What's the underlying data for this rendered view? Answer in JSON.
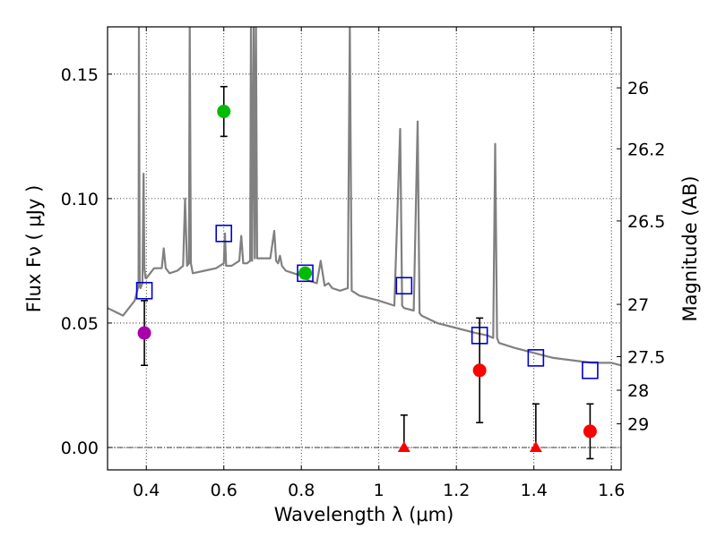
{
  "chart_data": {
    "type": "scatter",
    "xlabel": "Wavelength  λ (μm)",
    "ylabel_left": "Flux  Fν  ( μJy )",
    "ylabel_right": "Magnitude (AB)",
    "xlim": [
      0.3,
      1.625
    ],
    "ylim": [
      -0.009,
      0.169
    ],
    "x_ticks": [
      0.4,
      0.6,
      0.8,
      1.0,
      1.2,
      1.4,
      1.6
    ],
    "x_tick_labels": [
      "0.4",
      "0.6",
      "0.8",
      "1",
      "1.2",
      "1.4",
      "1.6"
    ],
    "y_ticks": [
      0.0,
      0.05,
      0.1,
      0.15
    ],
    "y_tick_labels": [
      "0.00",
      "0.05",
      "0.10",
      "0.15"
    ],
    "right_ticks": [
      {
        "label": "26",
        "flux": 0.1445
      },
      {
        "label": "26.2",
        "flux": 0.12
      },
      {
        "label": "26.5",
        "flux": 0.091
      },
      {
        "label": "27",
        "flux": 0.0575
      },
      {
        "label": "27.5",
        "flux": 0.0365
      },
      {
        "label": "28",
        "flux": 0.023
      },
      {
        "label": "29",
        "flux": 0.0095
      }
    ],
    "grid": true,
    "zero_line": 0.0,
    "colors": {
      "spectrum": "#808080",
      "model_box": "#0000cc",
      "purple": "#aa00aa",
      "green": "#00bb00",
      "red": "#ff0000",
      "errorbar": "#000000"
    },
    "series": [
      {
        "name": "model_spectrum",
        "type": "line",
        "x": [
          0.3,
          0.34,
          0.37,
          0.38,
          0.381,
          0.383,
          0.385,
          0.39,
          0.393,
          0.395,
          0.398,
          0.4,
          0.42,
          0.44,
          0.445,
          0.45,
          0.46,
          0.48,
          0.495,
          0.5,
          0.505,
          0.51,
          0.512,
          0.515,
          0.52,
          0.55,
          0.58,
          0.6,
          0.603,
          0.606,
          0.62,
          0.64,
          0.645,
          0.65,
          0.66,
          0.668,
          0.67,
          0.673,
          0.677,
          0.68,
          0.683,
          0.686,
          0.69,
          0.72,
          0.73,
          0.735,
          0.74,
          0.745,
          0.75,
          0.76,
          0.78,
          0.8,
          0.82,
          0.84,
          0.85,
          0.86,
          0.87,
          0.88,
          0.9,
          0.92,
          0.925,
          0.93,
          0.95,
          1.0,
          1.04,
          1.055,
          1.06,
          1.065,
          1.09,
          1.1,
          1.105,
          1.11,
          1.15,
          1.2,
          1.25,
          1.28,
          1.295,
          1.3,
          1.305,
          1.31,
          1.35,
          1.4,
          1.45,
          1.5,
          1.55,
          1.6,
          1.625
        ],
        "y": [
          0.056,
          0.053,
          0.059,
          0.065,
          0.17,
          0.065,
          0.064,
          0.066,
          0.11,
          0.072,
          0.068,
          0.068,
          0.072,
          0.072,
          0.08,
          0.072,
          0.07,
          0.071,
          0.073,
          0.1,
          0.073,
          0.074,
          0.17,
          0.074,
          0.07,
          0.071,
          0.072,
          0.074,
          0.086,
          0.073,
          0.073,
          0.075,
          0.085,
          0.074,
          0.074,
          0.075,
          0.17,
          0.075,
          0.17,
          0.076,
          0.17,
          0.076,
          0.076,
          0.076,
          0.087,
          0.075,
          0.074,
          0.077,
          0.073,
          0.071,
          0.07,
          0.069,
          0.067,
          0.066,
          0.075,
          0.065,
          0.066,
          0.064,
          0.063,
          0.064,
          0.17,
          0.063,
          0.061,
          0.059,
          0.057,
          0.128,
          0.057,
          0.056,
          0.055,
          0.131,
          0.054,
          0.053,
          0.05,
          0.048,
          0.046,
          0.045,
          0.044,
          0.122,
          0.044,
          0.042,
          0.04,
          0.038,
          0.036,
          0.035,
          0.034,
          0.034,
          0.033
        ]
      },
      {
        "name": "model_photometry",
        "type": "scatter",
        "marker": "open-square",
        "x": [
          0.395,
          0.6,
          0.81,
          1.065,
          1.26,
          1.405,
          1.545
        ],
        "y": [
          0.063,
          0.086,
          0.07,
          0.065,
          0.045,
          0.036,
          0.031
        ]
      },
      {
        "name": "observed_photometry",
        "type": "scatter",
        "points": [
          {
            "x": 0.395,
            "y": 0.046,
            "err": 0.013,
            "marker": "circle",
            "color": "purple"
          },
          {
            "x": 0.6,
            "y": 0.135,
            "err": 0.01,
            "marker": "circle",
            "color": "green"
          },
          {
            "x": 0.81,
            "y": 0.07,
            "err": 0,
            "marker": "circle",
            "color": "green"
          },
          {
            "x": 1.065,
            "y": 0.0,
            "err_up": 0.013,
            "err_down": 0,
            "marker": "triangle",
            "color": "red"
          },
          {
            "x": 1.26,
            "y": 0.031,
            "err": 0.021,
            "marker": "circle",
            "color": "red"
          },
          {
            "x": 1.405,
            "y": 0.0,
            "err_up": 0.0175,
            "err_down": 0,
            "marker": "triangle",
            "color": "red"
          },
          {
            "x": 1.545,
            "y": 0.0065,
            "err": 0.011,
            "marker": "circle",
            "color": "red"
          }
        ]
      }
    ]
  }
}
